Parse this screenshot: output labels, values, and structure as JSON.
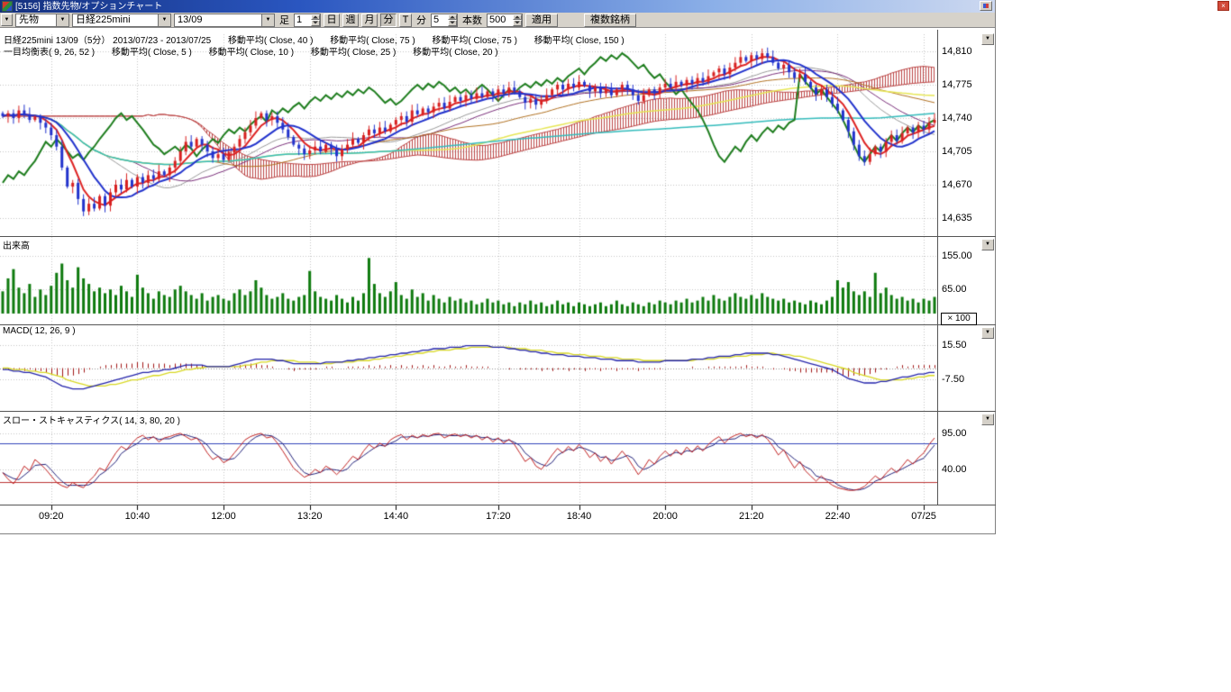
{
  "window": {
    "title": "[5156] 指数先物/オプションチャート"
  },
  "icons": {
    "dropdown_arrow": "▼",
    "close_glyph": "×"
  },
  "toolbar": {
    "category_value": "先物",
    "symbol_value": "日経225mini",
    "contract_value": "13/09",
    "bar_label": "足",
    "bar_count_value": "1",
    "period_day": "日",
    "period_week": "週",
    "period_month": "月",
    "period_minute": "分",
    "period_tick": "T",
    "minute_label": "分",
    "minute_value": "5",
    "bars_label": "本数",
    "bars_value": "500",
    "apply_label": "適用",
    "multi_label": "複数銘柄"
  },
  "legend": {
    "line1": [
      "日経225mini 13/09（5分） 2013/07/23 - 2013/07/25",
      "移動平均( Close, 40 )",
      "移動平均( Close, 75 )",
      "移動平均( Close, 75 )",
      "移動平均( Close, 150 )"
    ],
    "line2": [
      "一目均衡表( 9, 26, 52 )",
      "移動平均( Close, 5 )",
      "移動平均( Close, 10 )",
      "移動平均( Close, 25 )",
      "移動平均( Close, 20 )"
    ]
  },
  "panels": {
    "volume_label": "出来高",
    "volume_unit": "× 100",
    "macd_label": "MACD( 12, 26, 9 )",
    "stoch_label": "スロー・ストキャスティクス( 14, 3, 80, 20 )"
  },
  "axes": {
    "price_ticks": [
      {
        "label": "14,810",
        "value": 14810
      },
      {
        "label": "14,775",
        "value": 14775
      },
      {
        "label": "14,740",
        "value": 14740
      },
      {
        "label": "14,705",
        "value": 14705
      },
      {
        "label": "14,670",
        "value": 14670
      },
      {
        "label": "14,635",
        "value": 14635
      }
    ],
    "volume_ticks": [
      {
        "label": "155.00",
        "value": 155
      },
      {
        "label": "65.00",
        "value": 65
      }
    ],
    "macd_ticks": [
      {
        "label": "15.50",
        "value": 15.5
      },
      {
        "label": "-7.50",
        "value": -7.5
      }
    ],
    "stoch_ticks": [
      {
        "label": "95.00",
        "value": 95
      },
      {
        "label": "40.00",
        "value": 40
      }
    ],
    "time_ticks": [
      {
        "label": "09:20",
        "bar": 9
      },
      {
        "label": "10:40",
        "bar": 25
      },
      {
        "label": "12:00",
        "bar": 41
      },
      {
        "label": "13:20",
        "bar": 57
      },
      {
        "label": "14:40",
        "bar": 73
      },
      {
        "label": "17:20",
        "bar": 92
      },
      {
        "label": "18:40",
        "bar": 107
      },
      {
        "label": "20:00",
        "bar": 123
      },
      {
        "label": "21:20",
        "bar": 139
      },
      {
        "label": "22:40",
        "bar": 155
      },
      {
        "label": "07/25",
        "bar": 171
      }
    ]
  },
  "chart_data": {
    "type": "candlestick+volume+macd+stochastics",
    "title": "日経225mini 13/09（5分） 2013/07/23 - 2013/07/25",
    "interval": "5分",
    "price_axis_range": [
      14635,
      14810
    ],
    "indicators": {
      "ichimoku": [
        9,
        26,
        52
      ],
      "ma_overlays": [
        5,
        10,
        20,
        25,
        40,
        75,
        150
      ],
      "macd": [
        12,
        26,
        9
      ],
      "stochastics": [
        14,
        3,
        80,
        20
      ]
    },
    "levels": {
      "stoch_upper": 80,
      "stoch_lower": 20
    },
    "close": [
      14742,
      14745,
      14740,
      14748,
      14744,
      14738,
      14741,
      14735,
      14730,
      14722,
      14710,
      14688,
      14668,
      14672,
      14655,
      14642,
      14650,
      14645,
      14658,
      14648,
      14662,
      14670,
      14665,
      14675,
      14668,
      14678,
      14672,
      14680,
      14676,
      14684,
      14680,
      14688,
      14695,
      14705,
      14715,
      14710,
      14718,
      14712,
      14705,
      14698,
      14702,
      14696,
      14704,
      14710,
      14718,
      14725,
      14732,
      14740,
      14745,
      14738,
      14742,
      14735,
      14728,
      14720,
      14712,
      14708,
      14702,
      14706,
      14710,
      14705,
      14712,
      14708,
      14700,
      14707,
      14712,
      14718,
      14714,
      14722,
      14728,
      14724,
      14730,
      14726,
      14733,
      14738,
      14742,
      14736,
      14748,
      14744,
      14750,
      14746,
      14752,
      14756,
      14750,
      14757,
      14762,
      14758,
      14764,
      14760,
      14766,
      14762,
      14768,
      14764,
      14770,
      14766,
      14772,
      14768,
      14762,
      14756,
      14760,
      14754,
      14758,
      14764,
      14770,
      14775,
      14770,
      14776,
      14772,
      14778,
      14774,
      14768,
      14772,
      14766,
      14770,
      14764,
      14770,
      14775,
      14770,
      14764,
      14758,
      14764,
      14770,
      14766,
      14772,
      14776,
      14772,
      14778,
      14774,
      14780,
      14776,
      14782,
      14778,
      14784,
      14788,
      14792,
      14786,
      14793,
      14798,
      14804,
      14800,
      14806,
      14802,
      14808,
      14804,
      14798,
      14792,
      14796,
      14788,
      14782,
      14786,
      14778,
      14772,
      14765,
      14770,
      14762,
      14755,
      14748,
      14738,
      14726,
      14712,
      14700,
      14694,
      14702,
      14710,
      14705,
      14715,
      14722,
      14716,
      14724,
      14730,
      14725,
      14732,
      14728,
      14735,
      14738
    ],
    "volume": [
      60,
      95,
      120,
      70,
      55,
      80,
      45,
      65,
      50,
      75,
      110,
      135,
      90,
      70,
      125,
      95,
      80,
      60,
      70,
      55,
      65,
      50,
      75,
      60,
      45,
      105,
      70,
      55,
      40,
      60,
      50,
      45,
      65,
      75,
      60,
      50,
      40,
      55,
      35,
      45,
      50,
      40,
      35,
      55,
      65,
      50,
      60,
      90,
      70,
      50,
      40,
      45,
      55,
      40,
      35,
      45,
      50,
      115,
      60,
      45,
      40,
      35,
      50,
      40,
      30,
      45,
      35,
      55,
      150,
      80,
      55,
      45,
      60,
      85,
      50,
      40,
      65,
      45,
      55,
      35,
      50,
      40,
      30,
      45,
      35,
      40,
      30,
      35,
      25,
      30,
      40,
      30,
      35,
      25,
      30,
      20,
      30,
      25,
      35,
      25,
      30,
      20,
      25,
      35,
      25,
      30,
      20,
      30,
      25,
      20,
      25,
      30,
      20,
      25,
      35,
      25,
      20,
      30,
      25,
      20,
      30,
      25,
      35,
      30,
      25,
      35,
      30,
      40,
      30,
      35,
      45,
      35,
      50,
      40,
      35,
      45,
      55,
      45,
      40,
      50,
      40,
      55,
      45,
      40,
      35,
      40,
      30,
      35,
      30,
      25,
      35,
      30,
      25,
      35,
      45,
      90,
      70,
      85,
      60,
      50,
      60,
      45,
      110,
      55,
      70,
      50,
      40,
      45,
      35,
      40,
      30,
      40,
      35,
      45
    ],
    "macd": [
      -1,
      -1,
      -2,
      -2,
      -3,
      -3,
      -4,
      -5,
      -6,
      -8,
      -10,
      -12,
      -13,
      -14,
      -14,
      -14,
      -13,
      -12,
      -11,
      -10,
      -9,
      -8,
      -7,
      -6,
      -5,
      -4,
      -3,
      -3,
      -2,
      -2,
      -1,
      -1,
      0,
      1,
      2,
      2,
      2,
      2,
      1,
      1,
      1,
      1,
      1,
      2,
      3,
      4,
      5,
      6,
      6,
      6,
      6,
      5,
      5,
      4,
      3,
      3,
      3,
      3,
      3,
      3,
      4,
      4,
      4,
      4,
      5,
      5,
      6,
      6,
      7,
      7,
      8,
      8,
      9,
      9,
      10,
      10,
      11,
      11,
      12,
      12,
      13,
      13,
      13,
      14,
      14,
      14,
      15,
      15,
      15,
      15,
      15,
      14,
      14,
      14,
      13,
      13,
      12,
      12,
      11,
      11,
      10,
      10,
      9,
      9,
      9,
      8,
      8,
      8,
      7,
      7,
      7,
      6,
      6,
      6,
      5,
      5,
      5,
      5,
      4,
      4,
      4,
      4,
      4,
      5,
      5,
      5,
      5,
      5,
      6,
      6,
      6,
      7,
      7,
      8,
      8,
      8,
      9,
      9,
      10,
      10,
      10,
      10,
      10,
      9,
      9,
      8,
      7,
      6,
      5,
      4,
      3,
      2,
      1,
      0,
      -1,
      -3,
      -5,
      -7,
      -8,
      -9,
      -10,
      -10,
      -10,
      -9,
      -9,
      -8,
      -7,
      -6,
      -6,
      -5,
      -4,
      -4,
      -3,
      -3
    ],
    "macd_signal": [
      0,
      0,
      -1,
      -1,
      -1,
      -2,
      -2,
      -3,
      -3,
      -4,
      -5,
      -6,
      -8,
      -9,
      -10,
      -11,
      -12,
      -12,
      -12,
      -12,
      -11,
      -11,
      -10,
      -9,
      -8,
      -8,
      -7,
      -6,
      -5,
      -5,
      -4,
      -3,
      -3,
      -2,
      -1,
      -1,
      0,
      0,
      1,
      1,
      1,
      1,
      1,
      1,
      1,
      2,
      2,
      3,
      4,
      4,
      5,
      5,
      5,
      5,
      5,
      4,
      4,
      4,
      4,
      3,
      3,
      3,
      4,
      4,
      4,
      4,
      5,
      5,
      5,
      6,
      6,
      7,
      7,
      8,
      8,
      9,
      9,
      10,
      10,
      11,
      11,
      12,
      12,
      12,
      13,
      13,
      13,
      14,
      14,
      14,
      14,
      14,
      14,
      14,
      14,
      13,
      13,
      13,
      12,
      12,
      12,
      11,
      11,
      10,
      10,
      10,
      9,
      9,
      9,
      8,
      8,
      8,
      7,
      7,
      7,
      6,
      6,
      6,
      6,
      5,
      5,
      5,
      5,
      5,
      5,
      5,
      5,
      5,
      5,
      6,
      6,
      6,
      6,
      7,
      7,
      7,
      8,
      8,
      8,
      9,
      9,
      9,
      10,
      10,
      9,
      9,
      9,
      8,
      8,
      7,
      6,
      5,
      4,
      3,
      2,
      1,
      0,
      -1,
      -3,
      -4,
      -5,
      -6,
      -7,
      -8,
      -8,
      -8,
      -8,
      -8,
      -7,
      -7,
      -6,
      -6,
      -5,
      -5
    ],
    "stoch_k": [
      35,
      25,
      18,
      30,
      45,
      38,
      55,
      48,
      40,
      30,
      20,
      15,
      12,
      20,
      15,
      12,
      22,
      30,
      42,
      38,
      52,
      65,
      75,
      70,
      80,
      88,
      92,
      85,
      90,
      82,
      88,
      90,
      93,
      95,
      90,
      85,
      88,
      78,
      65,
      55,
      60,
      50,
      55,
      65,
      75,
      85,
      90,
      93,
      95,
      88,
      90,
      80,
      68,
      55,
      42,
      35,
      28,
      32,
      40,
      35,
      45,
      40,
      32,
      40,
      50,
      60,
      55,
      68,
      78,
      72,
      80,
      75,
      85,
      90,
      93,
      85,
      92,
      88,
      93,
      90,
      94,
      95,
      88,
      92,
      94,
      90,
      93,
      88,
      92,
      85,
      90,
      82,
      88,
      80,
      86,
      78,
      65,
      52,
      58,
      45,
      40,
      50,
      62,
      72,
      65,
      75,
      68,
      78,
      70,
      58,
      65,
      52,
      60,
      48,
      58,
      68,
      58,
      45,
      32,
      42,
      55,
      48,
      60,
      68,
      60,
      70,
      62,
      74,
      66,
      76,
      68,
      78,
      85,
      90,
      80,
      88,
      92,
      95,
      90,
      93,
      88,
      93,
      86,
      75,
      62,
      70,
      55,
      42,
      52,
      38,
      30,
      22,
      30,
      22,
      16,
      12,
      10,
      8,
      8,
      10,
      14,
      22,
      30,
      24,
      34,
      42,
      35,
      45,
      55,
      48,
      58,
      65,
      78,
      88
    ],
    "colors": {
      "candle_up": "#d82020",
      "candle_down": "#2233cc",
      "volume": "#0e7a0e",
      "ma5": "#dd2222",
      "ma10": "#2233cc",
      "ma20": "#999999",
      "ma25": "#7a2e7a",
      "ma40": "#b07020",
      "ma75": "#e6e655",
      "ma150": "#33bbbb",
      "chikou": "#1e7d1e",
      "cloud": "#bb4444",
      "macd": "#2222aa",
      "macd_signal": "#d8d822",
      "macd_hist": "#a01616",
      "stoch_k": "#c02020",
      "stoch_d": "#22227a",
      "stoch_upper_line": "#3344bb",
      "stoch_lower_line": "#bb3333"
    }
  }
}
